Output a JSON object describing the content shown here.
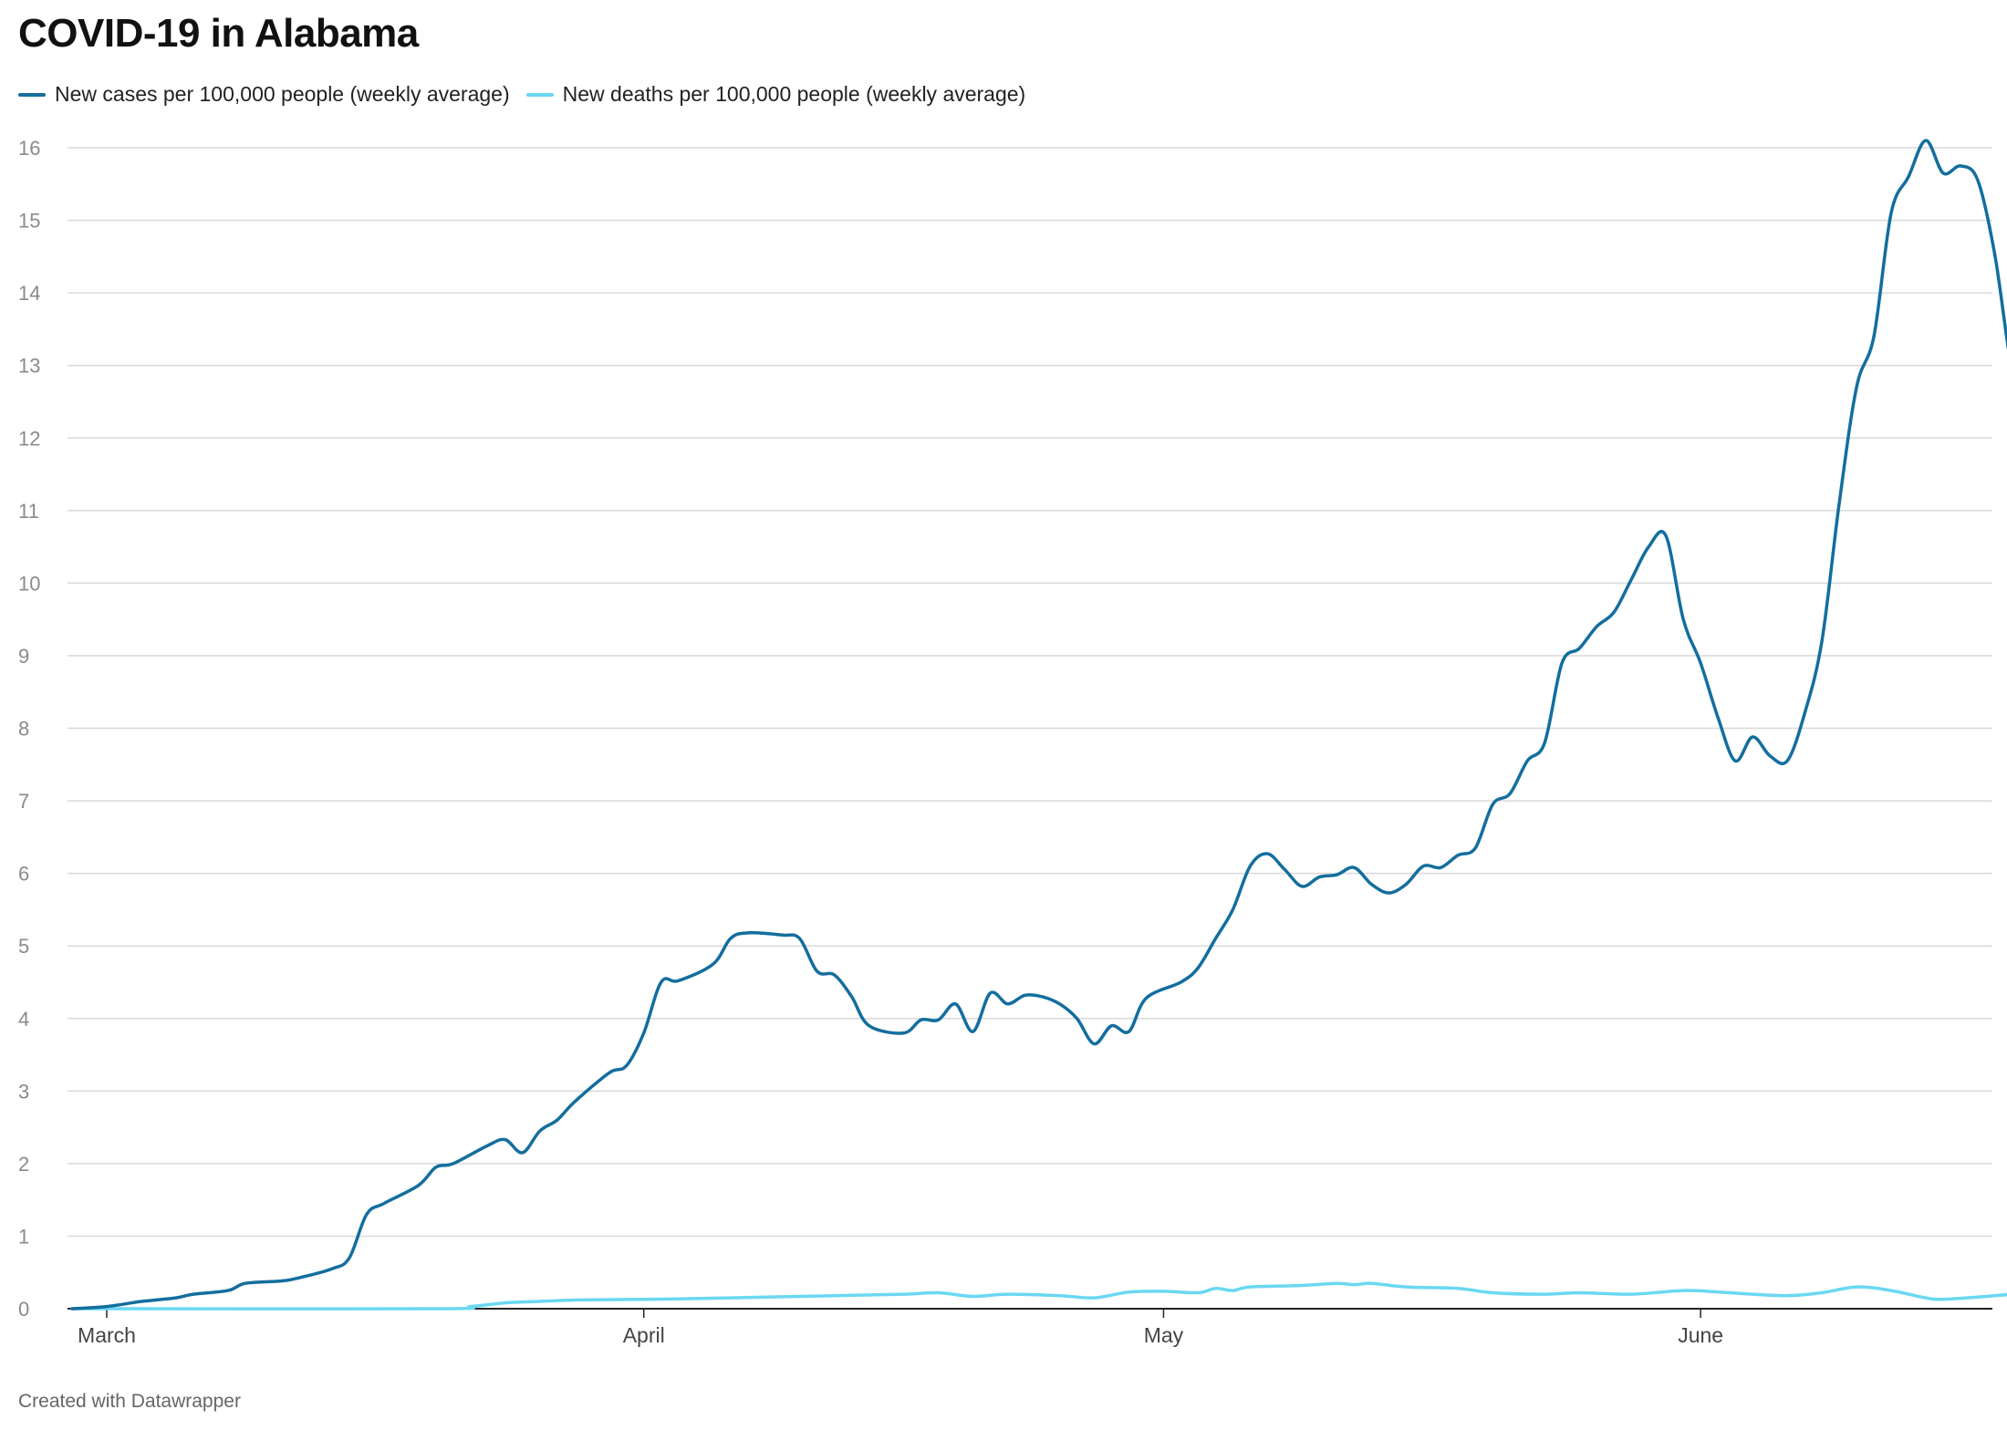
{
  "footer": "Created with Datawrapper",
  "chart_data": {
    "type": "line",
    "title": "COVID-19 in Alabama",
    "xlabel": "",
    "ylabel": "",
    "x_range": [
      "2020-03-01",
      "2020-06-17"
    ],
    "ylim": [
      0,
      16
    ],
    "y_ticks": [
      0,
      1,
      2,
      3,
      4,
      5,
      6,
      7,
      8,
      9,
      10,
      11,
      12,
      13,
      14,
      15,
      16
    ],
    "x_ticks": [
      {
        "label": "March",
        "date": "2020-03-01"
      },
      {
        "label": "April",
        "date": "2020-04-01"
      },
      {
        "label": "May",
        "date": "2020-05-01"
      },
      {
        "label": "June",
        "date": "2020-06-01"
      }
    ],
    "grid": true,
    "legend": "top-left",
    "series": [
      {
        "name": "New cases per 100,000 people (weekly average)",
        "color": "#136e9e",
        "points": [
          [
            "2020-02-28",
            0.0
          ],
          [
            "2020-03-01",
            0.03
          ],
          [
            "2020-03-03",
            0.1
          ],
          [
            "2020-03-05",
            0.15
          ],
          [
            "2020-03-06",
            0.2
          ],
          [
            "2020-03-08",
            0.25
          ],
          [
            "2020-03-09",
            0.35
          ],
          [
            "2020-03-11",
            0.38
          ],
          [
            "2020-03-12",
            0.42
          ],
          [
            "2020-03-14",
            0.55
          ],
          [
            "2020-03-15",
            0.7
          ],
          [
            "2020-03-16",
            1.3
          ],
          [
            "2020-03-17",
            1.45
          ],
          [
            "2020-03-19",
            1.7
          ],
          [
            "2020-03-20",
            1.95
          ],
          [
            "2020-03-21",
            2.0
          ],
          [
            "2020-03-23",
            2.25
          ],
          [
            "2020-03-24",
            2.33
          ],
          [
            "2020-03-25",
            2.15
          ],
          [
            "2020-03-26",
            2.45
          ],
          [
            "2020-03-27",
            2.6
          ],
          [
            "2020-03-28",
            2.85
          ],
          [
            "2020-03-30",
            3.25
          ],
          [
            "2020-03-31",
            3.35
          ],
          [
            "2020-04-01",
            3.8
          ],
          [
            "2020-04-02",
            4.5
          ],
          [
            "2020-04-03",
            4.52
          ],
          [
            "2020-04-05",
            4.75
          ],
          [
            "2020-04-06",
            5.1
          ],
          [
            "2020-04-07",
            5.18
          ],
          [
            "2020-04-09",
            5.15
          ],
          [
            "2020-04-10",
            5.1
          ],
          [
            "2020-04-11",
            4.65
          ],
          [
            "2020-04-12",
            4.6
          ],
          [
            "2020-04-13",
            4.3
          ],
          [
            "2020-04-14",
            3.9
          ],
          [
            "2020-04-16",
            3.8
          ],
          [
            "2020-04-17",
            3.98
          ],
          [
            "2020-04-18",
            3.98
          ],
          [
            "2020-04-19",
            4.2
          ],
          [
            "2020-04-20",
            3.82
          ],
          [
            "2020-04-21",
            4.35
          ],
          [
            "2020-04-22",
            4.2
          ],
          [
            "2020-04-23",
            4.32
          ],
          [
            "2020-04-24",
            4.3
          ],
          [
            "2020-04-25",
            4.2
          ],
          [
            "2020-04-26",
            4.0
          ],
          [
            "2020-04-27",
            3.65
          ],
          [
            "2020-04-28",
            3.9
          ],
          [
            "2020-04-29",
            3.82
          ],
          [
            "2020-04-30",
            4.28
          ],
          [
            "2020-05-02",
            4.5
          ],
          [
            "2020-05-03",
            4.7
          ],
          [
            "2020-05-04",
            5.1
          ],
          [
            "2020-05-05",
            5.5
          ],
          [
            "2020-05-06",
            6.1
          ],
          [
            "2020-05-07",
            6.27
          ],
          [
            "2020-05-08",
            6.05
          ],
          [
            "2020-05-09",
            5.82
          ],
          [
            "2020-05-10",
            5.95
          ],
          [
            "2020-05-11",
            5.98
          ],
          [
            "2020-05-12",
            6.08
          ],
          [
            "2020-05-13",
            5.85
          ],
          [
            "2020-05-14",
            5.73
          ],
          [
            "2020-05-15",
            5.85
          ],
          [
            "2020-05-16",
            6.1
          ],
          [
            "2020-05-17",
            6.08
          ],
          [
            "2020-05-18",
            6.25
          ],
          [
            "2020-05-19",
            6.35
          ],
          [
            "2020-05-20",
            6.95
          ],
          [
            "2020-05-21",
            7.1
          ],
          [
            "2020-05-22",
            7.55
          ],
          [
            "2020-05-23",
            7.8
          ],
          [
            "2020-05-24",
            8.9
          ],
          [
            "2020-05-25",
            9.1
          ],
          [
            "2020-05-26",
            9.4
          ],
          [
            "2020-05-27",
            9.6
          ],
          [
            "2020-05-28",
            10.05
          ],
          [
            "2020-05-29",
            10.5
          ],
          [
            "2020-05-30",
            10.65
          ],
          [
            "2020-05-31",
            9.5
          ],
          [
            "2020-06-01",
            8.9
          ],
          [
            "2020-06-02",
            8.15
          ],
          [
            "2020-06-03",
            7.55
          ],
          [
            "2020-06-04",
            7.88
          ],
          [
            "2020-06-05",
            7.62
          ],
          [
            "2020-06-06",
            7.55
          ],
          [
            "2020-06-07",
            8.2
          ],
          [
            "2020-06-08",
            9.2
          ],
          [
            "2020-06-09",
            11.1
          ],
          [
            "2020-06-10",
            12.7
          ],
          [
            "2020-06-11",
            13.4
          ],
          [
            "2020-06-12",
            15.1
          ],
          [
            "2020-06-13",
            15.6
          ],
          [
            "2020-06-14",
            16.1
          ],
          [
            "2020-06-15",
            15.65
          ],
          [
            "2020-06-16",
            15.75
          ],
          [
            "2020-06-17",
            15.55
          ],
          [
            "2020-06-18",
            14.5
          ],
          [
            "2020-06-19",
            12.9
          ],
          [
            "2020-06-20",
            12.3
          ],
          [
            "2020-06-21",
            12.3
          ]
        ]
      },
      {
        "name": "New deaths per 100,000 people (weekly average)",
        "color": "#6ad8f2",
        "points": [
          [
            "2020-02-28",
            0.0
          ],
          [
            "2020-03-20",
            0.0
          ],
          [
            "2020-03-22",
            0.03
          ],
          [
            "2020-03-24",
            0.08
          ],
          [
            "2020-03-26",
            0.1
          ],
          [
            "2020-03-28",
            0.12
          ],
          [
            "2020-04-01",
            0.13
          ],
          [
            "2020-04-04",
            0.14
          ],
          [
            "2020-04-08",
            0.16
          ],
          [
            "2020-04-12",
            0.18
          ],
          [
            "2020-04-16",
            0.2
          ],
          [
            "2020-04-18",
            0.22
          ],
          [
            "2020-04-20",
            0.17
          ],
          [
            "2020-04-22",
            0.2
          ],
          [
            "2020-04-25",
            0.18
          ],
          [
            "2020-04-27",
            0.15
          ],
          [
            "2020-04-29",
            0.23
          ],
          [
            "2020-05-01",
            0.24
          ],
          [
            "2020-05-03",
            0.22
          ],
          [
            "2020-05-04",
            0.28
          ],
          [
            "2020-05-05",
            0.25
          ],
          [
            "2020-05-06",
            0.3
          ],
          [
            "2020-05-09",
            0.32
          ],
          [
            "2020-05-11",
            0.35
          ],
          [
            "2020-05-12",
            0.33
          ],
          [
            "2020-05-13",
            0.35
          ],
          [
            "2020-05-15",
            0.3
          ],
          [
            "2020-05-18",
            0.28
          ],
          [
            "2020-05-20",
            0.22
          ],
          [
            "2020-05-23",
            0.2
          ],
          [
            "2020-05-25",
            0.22
          ],
          [
            "2020-05-28",
            0.2
          ],
          [
            "2020-05-31",
            0.25
          ],
          [
            "2020-06-02",
            0.23
          ],
          [
            "2020-06-04",
            0.2
          ],
          [
            "2020-06-06",
            0.18
          ],
          [
            "2020-06-08",
            0.22
          ],
          [
            "2020-06-10",
            0.3
          ],
          [
            "2020-06-12",
            0.25
          ],
          [
            "2020-06-14",
            0.15
          ],
          [
            "2020-06-15",
            0.13
          ],
          [
            "2020-06-17",
            0.16
          ],
          [
            "2020-06-19",
            0.2
          ],
          [
            "2020-06-21",
            0.23
          ]
        ]
      }
    ]
  }
}
